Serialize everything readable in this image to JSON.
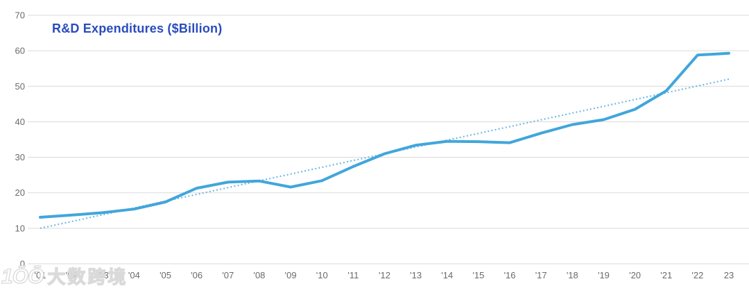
{
  "chart_data": {
    "type": "line",
    "title": "R&D Expenditures ($Billion)",
    "xlabel": "",
    "ylabel": "",
    "x_years": [
      2001,
      2002,
      2003,
      2004,
      2005,
      2006,
      2007,
      2008,
      2009,
      2010,
      2011,
      2012,
      2013,
      2014,
      2015,
      2016,
      2017,
      2018,
      2019,
      2020,
      2021,
      2022,
      2023
    ],
    "x_tick_labels": [
      "'01",
      "'02",
      "'03",
      "'04",
      "'05",
      "'06",
      "'07",
      "'08",
      "'09",
      "'10",
      "'11",
      "'12",
      "'13",
      "'14",
      "'15",
      "'16",
      "'17",
      "'18",
      "'19",
      "'20",
      "'21",
      "'22",
      "23"
    ],
    "yticks": [
      0,
      10,
      20,
      30,
      40,
      50,
      60,
      70
    ],
    "ylim": [
      0,
      70
    ],
    "grid": "horizontal",
    "legend": "none",
    "series": [
      {
        "name": "R&D Expenditures",
        "style": "solid",
        "values": [
          13.1,
          13.7,
          14.4,
          15.4,
          17.4,
          21.3,
          23.0,
          23.3,
          21.6,
          23.4,
          27.4,
          31.0,
          33.4,
          34.5,
          34.4,
          34.1,
          36.8,
          39.2,
          40.6,
          43.5,
          48.7,
          58.8,
          59.3
        ]
      },
      {
        "name": "Linear trend",
        "style": "dotted",
        "endpoints": [
          10.0,
          52.0
        ]
      }
    ]
  },
  "colors": {
    "title": "#2a4bbd",
    "line": "#41a6db",
    "trend": "#66b4e2",
    "grid": "#d9d9d9",
    "tick_text": "#6a6a6a"
  },
  "watermark": {
    "logo": "1ŌŌ",
    "text": "大数跨境"
  }
}
